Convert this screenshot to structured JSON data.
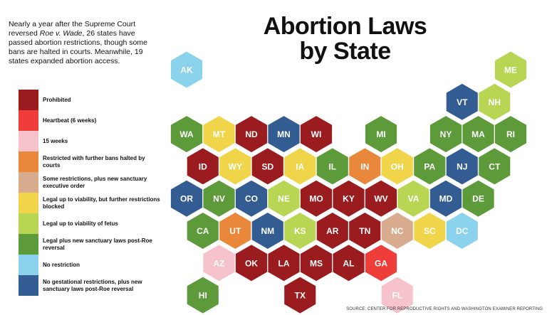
{
  "intro": {
    "part1": "Nearly a year after the Supreme Court reversed ",
    "case": "Roe v. Wade",
    "part2": ", 26 states have passed abortion restrictions, though some bans are halted in courts. Meanwhile, 19 states expanded abortion access."
  },
  "title": {
    "line1": "Abortion Laws",
    "line2": "by State"
  },
  "legend": [
    {
      "key": "prohibited",
      "label": "Prohibited",
      "color": "#9b1c1f"
    },
    {
      "key": "heartbeat",
      "label": "Heartbeat (6 weeks)",
      "color": "#ef3e3a"
    },
    {
      "key": "15weeks",
      "label": "15 weeks",
      "color": "#f6c3cd"
    },
    {
      "key": "restricted",
      "label": "Restricted with further bans halted by courts",
      "color": "#e9883a"
    },
    {
      "key": "sanctuary_order",
      "label": "Some restrictions, plus new sanctuary executive order",
      "color": "#d9ab8f"
    },
    {
      "key": "viability_blocked",
      "label": "Legal up to viability, but further restrictions blocked",
      "color": "#f0d54a"
    },
    {
      "key": "viability",
      "label": "Legal up to viability of fetus",
      "color": "#b8d654"
    },
    {
      "key": "sanctuary_laws",
      "label": "Legal plus new sanctuary laws post-Roe reversal",
      "color": "#5d9a3a"
    },
    {
      "key": "no_restriction",
      "label": "No restriction",
      "color": "#8bd2ec"
    },
    {
      "key": "no_gestational",
      "label": "No gestational restrictions, plus new sanctuary laws post-Roe reversal",
      "color": "#335c93"
    }
  ],
  "states": [
    {
      "abbr": "AK",
      "category": "no_restriction",
      "row": 0,
      "col": 0
    },
    {
      "abbr": "ME",
      "category": "viability",
      "row": 0,
      "col": 10
    },
    {
      "abbr": "VT",
      "category": "no_gestational",
      "row": 1,
      "col": 8
    },
    {
      "abbr": "NH",
      "category": "viability",
      "row": 1,
      "col": 9
    },
    {
      "abbr": "WA",
      "category": "sanctuary_laws",
      "row": 2,
      "col": 0
    },
    {
      "abbr": "MT",
      "category": "viability_blocked",
      "row": 2,
      "col": 1
    },
    {
      "abbr": "ND",
      "category": "prohibited",
      "row": 2,
      "col": 2
    },
    {
      "abbr": "MN",
      "category": "no_gestational",
      "row": 2,
      "col": 3
    },
    {
      "abbr": "WI",
      "category": "prohibited",
      "row": 2,
      "col": 4
    },
    {
      "abbr": "MI",
      "category": "sanctuary_laws",
      "row": 2,
      "col": 6
    },
    {
      "abbr": "NY",
      "category": "sanctuary_laws",
      "row": 2,
      "col": 8
    },
    {
      "abbr": "MA",
      "category": "sanctuary_laws",
      "row": 2,
      "col": 9
    },
    {
      "abbr": "RI",
      "category": "sanctuary_laws",
      "row": 2,
      "col": 10
    },
    {
      "abbr": "ID",
      "category": "prohibited",
      "row": 3,
      "col": 0
    },
    {
      "abbr": "WY",
      "category": "viability_blocked",
      "row": 3,
      "col": 1
    },
    {
      "abbr": "SD",
      "category": "prohibited",
      "row": 3,
      "col": 2
    },
    {
      "abbr": "IA",
      "category": "viability_blocked",
      "row": 3,
      "col": 3
    },
    {
      "abbr": "IL",
      "category": "sanctuary_laws",
      "row": 3,
      "col": 4
    },
    {
      "abbr": "IN",
      "category": "restricted",
      "row": 3,
      "col": 5
    },
    {
      "abbr": "OH",
      "category": "viability_blocked",
      "row": 3,
      "col": 6
    },
    {
      "abbr": "PA",
      "category": "sanctuary_laws",
      "row": 3,
      "col": 7
    },
    {
      "abbr": "NJ",
      "category": "no_gestational",
      "row": 3,
      "col": 8
    },
    {
      "abbr": "CT",
      "category": "sanctuary_laws",
      "row": 3,
      "col": 9
    },
    {
      "abbr": "OR",
      "category": "no_gestational",
      "row": 4,
      "col": 0
    },
    {
      "abbr": "NV",
      "category": "sanctuary_laws",
      "row": 4,
      "col": 1
    },
    {
      "abbr": "CO",
      "category": "no_gestational",
      "row": 4,
      "col": 2
    },
    {
      "abbr": "NE",
      "category": "viability",
      "row": 4,
      "col": 3
    },
    {
      "abbr": "MO",
      "category": "prohibited",
      "row": 4,
      "col": 4
    },
    {
      "abbr": "KY",
      "category": "prohibited",
      "row": 4,
      "col": 5
    },
    {
      "abbr": "WV",
      "category": "prohibited",
      "row": 4,
      "col": 6
    },
    {
      "abbr": "VA",
      "category": "viability",
      "row": 4,
      "col": 7
    },
    {
      "abbr": "MD",
      "category": "no_gestational",
      "row": 4,
      "col": 8
    },
    {
      "abbr": "DE",
      "category": "sanctuary_laws",
      "row": 4,
      "col": 9
    },
    {
      "abbr": "CA",
      "category": "sanctuary_laws",
      "row": 5,
      "col": 0
    },
    {
      "abbr": "UT",
      "category": "restricted",
      "row": 5,
      "col": 1
    },
    {
      "abbr": "NM",
      "category": "no_gestational",
      "row": 5,
      "col": 2
    },
    {
      "abbr": "KS",
      "category": "viability",
      "row": 5,
      "col": 3
    },
    {
      "abbr": "AR",
      "category": "prohibited",
      "row": 5,
      "col": 4
    },
    {
      "abbr": "TN",
      "category": "prohibited",
      "row": 5,
      "col": 5
    },
    {
      "abbr": "NC",
      "category": "sanctuary_order",
      "row": 5,
      "col": 6
    },
    {
      "abbr": "SC",
      "category": "viability_blocked",
      "row": 5,
      "col": 7
    },
    {
      "abbr": "DC",
      "category": "no_restriction",
      "row": 5,
      "col": 8
    },
    {
      "abbr": "AZ",
      "category": "15weeks",
      "row": 6,
      "col": 1
    },
    {
      "abbr": "OK",
      "category": "prohibited",
      "row": 6,
      "col": 2
    },
    {
      "abbr": "LA",
      "category": "prohibited",
      "row": 6,
      "col": 3
    },
    {
      "abbr": "MS",
      "category": "prohibited",
      "row": 6,
      "col": 4
    },
    {
      "abbr": "AL",
      "category": "prohibited",
      "row": 6,
      "col": 5
    },
    {
      "abbr": "GA",
      "category": "heartbeat",
      "row": 6,
      "col": 6
    },
    {
      "abbr": "HI",
      "category": "sanctuary_laws",
      "row": 7,
      "col": 0
    },
    {
      "abbr": "TX",
      "category": "prohibited",
      "row": 7,
      "col": 3
    },
    {
      "abbr": "FL",
      "category": "15weeks",
      "row": 7,
      "col": 6
    }
  ],
  "source": "SOURCE: CENTER FOR REPRODUCTIVE RIGHTS AND WASHINGTON EXAMINER REPORTING"
}
